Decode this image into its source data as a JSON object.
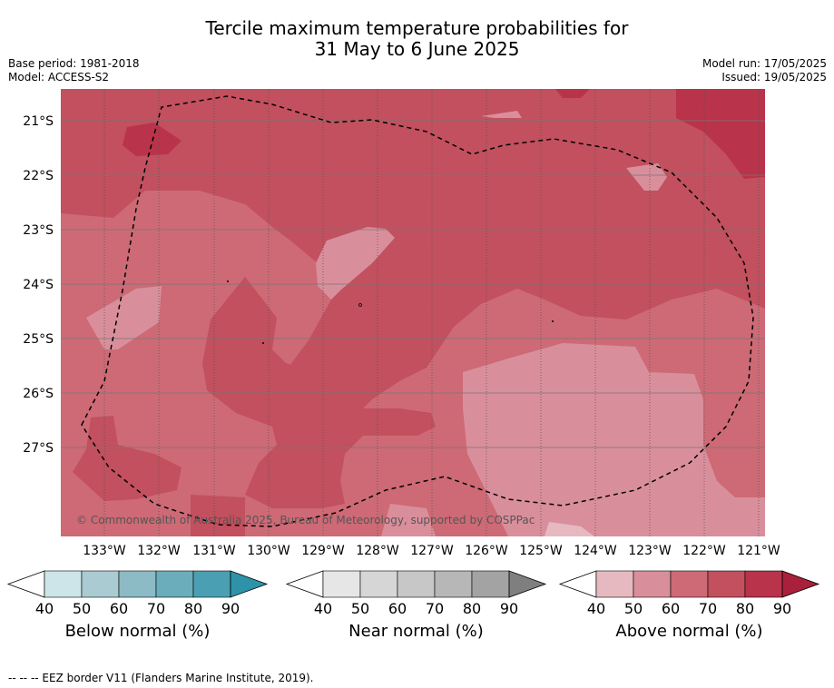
{
  "title_line1": "Tercile maximum temperature probabilities for",
  "title_line2": "31 May to 6 June 2025",
  "left_meta": {
    "base_period": "Base period: 1981-2018",
    "model": "Model: ACCESS-S2"
  },
  "right_meta": {
    "model_run": "Model run: 17/05/2025",
    "issued": "Issued: 19/05/2025"
  },
  "copyright": "© Commonwealth of Australia 2025, Bureau of Meteorology, supported by COSPPac",
  "lat_labels": [
    "21°S",
    "22°S",
    "23°S",
    "24°S",
    "25°S",
    "26°S",
    "27°S"
  ],
  "lon_labels": [
    "133°W",
    "132°W",
    "131°W",
    "130°W",
    "129°W",
    "128°W",
    "127°W",
    "126°W",
    "125°W",
    "124°W",
    "123°W",
    "122°W",
    "121°W"
  ],
  "colorbars": [
    {
      "title": "Below normal (%)",
      "ticks": [
        "40",
        "50",
        "60",
        "70",
        "80",
        "90"
      ],
      "colors": [
        "#cde4e9",
        "#a9cbd1",
        "#8cbac5",
        "#6badbb",
        "#4aa0b2",
        "#2e93a8"
      ]
    },
    {
      "title": "Near normal (%)",
      "ticks": [
        "40",
        "50",
        "60",
        "70",
        "80",
        "90"
      ],
      "colors": [
        "#e6e6e6",
        "#d6d6d6",
        "#c7c7c7",
        "#b7b7b7",
        "#a3a3a3",
        "#7f7f7f"
      ]
    },
    {
      "title": "Above normal (%)",
      "ticks": [
        "40",
        "50",
        "60",
        "70",
        "80",
        "90"
      ],
      "colors": [
        "#e6b9c1",
        "#d98f9b",
        "#cd6a76",
        "#c2505e",
        "#b9334a",
        "#a8203b"
      ]
    }
  ],
  "map_colors": {
    "above_50": "#d98f9b",
    "above_60": "#cd6a76",
    "above_70": "#c2505e",
    "above_80": "#b9334a",
    "above_40": "#e6b9c1"
  },
  "footer": "--  --  -- EEZ border V11 (Flanders Marine Institute, 2019)."
}
